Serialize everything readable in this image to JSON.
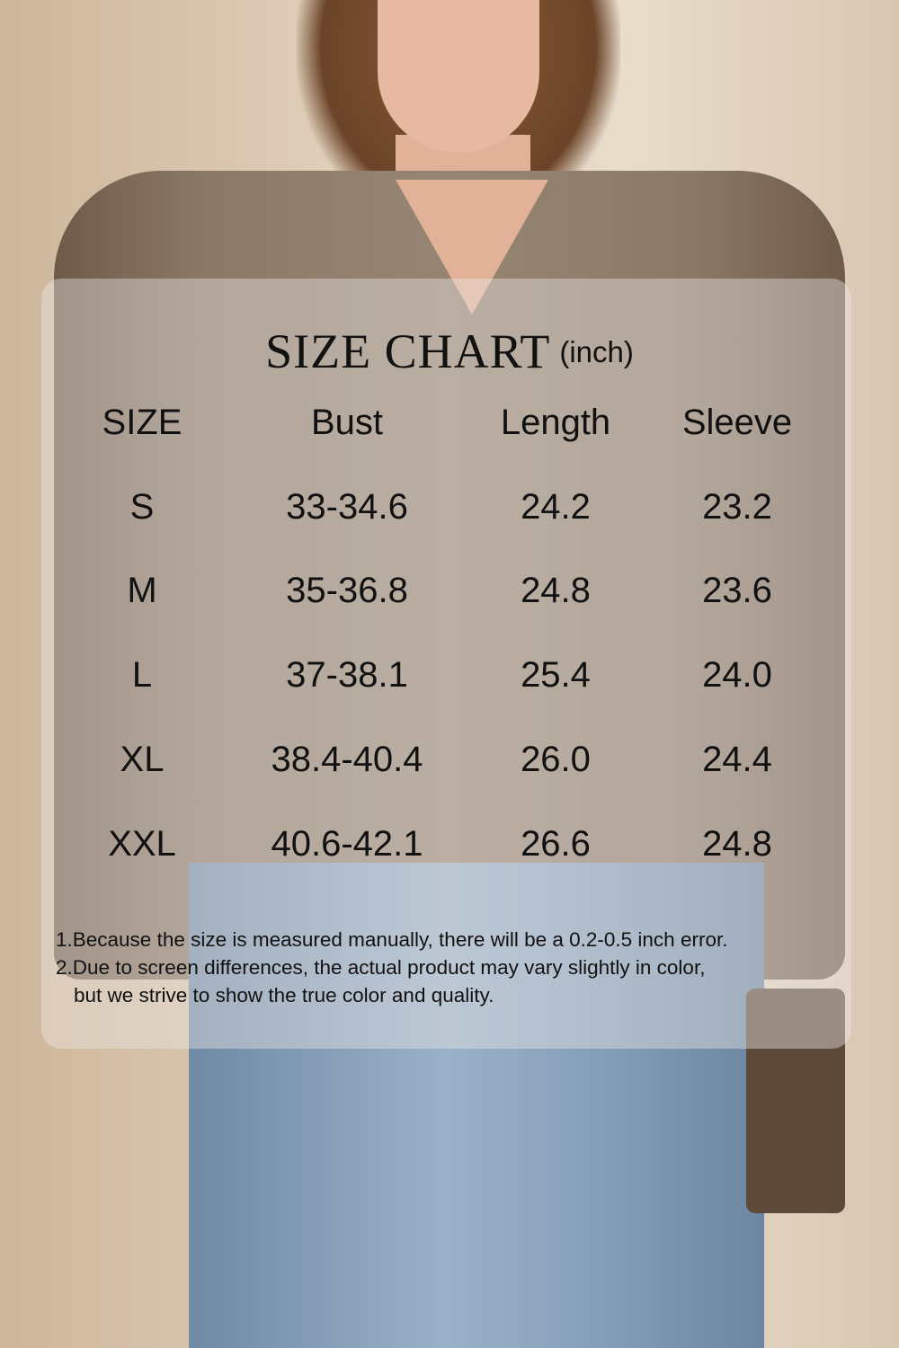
{
  "title": "SIZE CHART",
  "unit": "(inch)",
  "colors": {
    "panel": "#ebe8e4",
    "text": "#111111",
    "sweater": "#968573"
  },
  "table": {
    "headers": [
      "SIZE",
      "Bust",
      "Length",
      "Sleeve"
    ],
    "rows": [
      [
        "S",
        "33-34.6",
        "24.2",
        "23.2"
      ],
      [
        "M",
        "35-36.8",
        "24.8",
        "23.6"
      ],
      [
        "L",
        "37-38.1",
        "25.4",
        "24.0"
      ],
      [
        "XL",
        "38.4-40.4",
        "26.0",
        "24.4"
      ],
      [
        "XXL",
        "40.6-42.1",
        "26.6",
        "24.8"
      ]
    ]
  },
  "notes": [
    "1.Because the size is measured manually, there will be a 0.2-0.5 inch error.",
    "2.Due to screen differences, the actual product may vary slightly in color,",
    "but we strive to show the true color and quality."
  ]
}
